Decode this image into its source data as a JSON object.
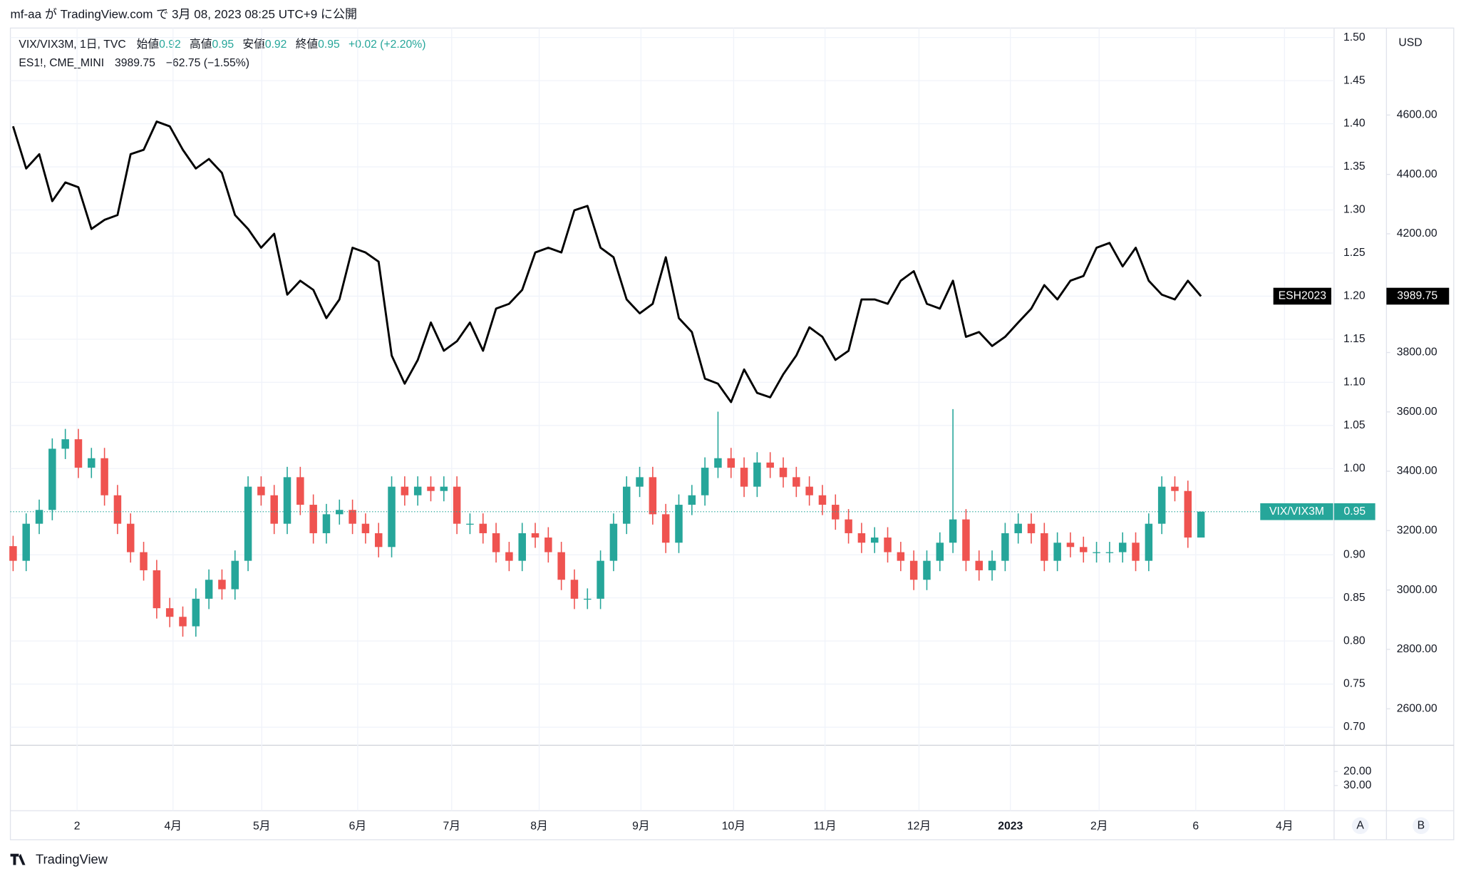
{
  "header": "mf-aa が TradingView.com で 3月 08, 2023 08:25 UTC+9 に公開",
  "footer": "TradingView",
  "buttons": [
    "A",
    "B"
  ],
  "chart_data": {
    "type": "candlestick",
    "legend": {
      "title": "VIX/VIX3M, 1日, TVC",
      "open_label": "始値",
      "high_label": "高値",
      "low_label": "安値",
      "close_label": "終値",
      "change": "+0.02 (+2.20%)",
      "title2": "ES1!, CME_MINI",
      "change2": "−62.75 (−1.55%)"
    },
    "currency": "USD",
    "grid": true,
    "xlim": [
      -0.21,
      101.2
    ],
    "xticks": [
      {
        "value": 4.9,
        "label": "2"
      },
      {
        "value": 12.25,
        "label": "4月"
      },
      {
        "value": 19.05,
        "label": "5月"
      },
      {
        "value": 26.4,
        "label": "6月"
      },
      {
        "value": 33.6,
        "label": "7月"
      },
      {
        "value": 40.3,
        "label": "8月"
      },
      {
        "value": 48.1,
        "label": "9月"
      },
      {
        "value": 55.2,
        "label": "10月"
      },
      {
        "value": 62.2,
        "label": "11月"
      },
      {
        "value": 69.4,
        "label": "12月"
      },
      {
        "value": 76.4,
        "label": "2023"
      },
      {
        "value": 83.2,
        "label": "2月"
      },
      {
        "value": 90.6,
        "label": "6"
      },
      {
        "value": 97.4,
        "label": "4月"
      }
    ],
    "ylim": [
      0.679,
      1.511
    ],
    "yticks": [
      {
        "value": 1.5,
        "label": "1.50"
      },
      {
        "value": 1.45,
        "label": "1.45"
      },
      {
        "value": 1.4,
        "label": "1.40"
      },
      {
        "value": 1.35,
        "label": "1.35"
      },
      {
        "value": 1.3,
        "label": "1.30"
      },
      {
        "value": 1.25,
        "label": "1.25"
      },
      {
        "value": 1.2,
        "label": "1.20"
      },
      {
        "value": 1.15,
        "label": "1.15"
      },
      {
        "value": 1.1,
        "label": "1.10"
      },
      {
        "value": 1.05,
        "label": "1.05"
      },
      {
        "value": 1,
        "label": "1.00"
      },
      {
        "value": 0.9,
        "label": "0.90"
      },
      {
        "value": 0.85,
        "label": "0.85"
      },
      {
        "value": 0.8,
        "label": "0.80"
      },
      {
        "value": 0.75,
        "label": "0.75"
      },
      {
        "value": 0.7,
        "label": "0.70"
      }
    ],
    "y2lim": [
      2477,
      4893
    ],
    "y2ticks": [
      {
        "value": 4600,
        "label": "4600.00"
      },
      {
        "value": 4400,
        "label": "4400.00"
      },
      {
        "value": 4200,
        "label": "4200.00"
      },
      {
        "value": 3800,
        "label": "3800.00"
      },
      {
        "value": 3600,
        "label": "3600.00"
      },
      {
        "value": 3400,
        "label": "3400.00"
      },
      {
        "value": 3200,
        "label": "3200.00"
      },
      {
        "value": 3000,
        "label": "3000.00"
      },
      {
        "value": 2800,
        "label": "2800.00"
      },
      {
        "value": 2600,
        "label": "2600.00"
      }
    ],
    "series": [
      {
        "name": "VIX/VIX3M",
        "type": "candlestick",
        "up_color": "#26a69a",
        "down_color": "#ef5350",
        "open": [
          0.91,
          0.893,
          0.936,
          0.952,
          1.023,
          1.034,
          1.001,
          1.012,
          0.969,
          0.936,
          0.903,
          0.882,
          0.838,
          0.828,
          0.817,
          0.849,
          0.871,
          0.86,
          0.893,
          0.979,
          0.969,
          0.936,
          0.99,
          0.958,
          0.925,
          0.947,
          0.952,
          0.936,
          0.925,
          0.909,
          0.979,
          0.969,
          0.979,
          0.974,
          0.979,
          0.936,
          0.936,
          0.925,
          0.903,
          0.893,
          0.925,
          0.92,
          0.903,
          0.871,
          0.849,
          0.849,
          0.893,
          0.936,
          0.979,
          0.99,
          0.947,
          0.914,
          0.958,
          0.969,
          1.001,
          1.012,
          1.001,
          0.979,
          1.007,
          1.001,
          0.99,
          0.979,
          0.969,
          0.958,
          0.941,
          0.925,
          0.914,
          0.92,
          0.903,
          0.893,
          0.871,
          0.893,
          0.914,
          0.941,
          0.893,
          0.882,
          0.893,
          0.925,
          0.936,
          0.925,
          0.893,
          0.914,
          0.909,
          0.903,
          0.903,
          0.903,
          0.914,
          0.893,
          0.936,
          0.979,
          0.974,
          0.92
        ],
        "high": [
          0.922,
          0.948,
          0.964,
          1.035,
          1.046,
          1.046,
          1.024,
          1.024,
          0.981,
          0.948,
          0.915,
          0.894,
          0.85,
          0.84,
          0.861,
          0.883,
          0.883,
          0.905,
          0.991,
          0.991,
          0.981,
          1.002,
          1.002,
          0.97,
          0.959,
          0.964,
          0.964,
          0.948,
          0.937,
          0.991,
          0.991,
          0.991,
          0.991,
          0.991,
          0.991,
          0.948,
          0.948,
          0.937,
          0.915,
          0.937,
          0.937,
          0.932,
          0.915,
          0.883,
          0.861,
          0.905,
          0.948,
          0.991,
          1.002,
          1.002,
          0.959,
          0.97,
          0.981,
          1.013,
          1.066,
          1.024,
          1.013,
          1.019,
          1.019,
          1.013,
          1.002,
          0.991,
          0.981,
          0.97,
          0.953,
          0.937,
          0.932,
          0.932,
          0.915,
          0.905,
          0.905,
          0.926,
          1.069,
          0.953,
          0.905,
          0.905,
          0.937,
          0.948,
          0.948,
          0.937,
          0.926,
          0.926,
          0.921,
          0.915,
          0.915,
          0.926,
          0.926,
          0.948,
          0.991,
          0.991,
          0.986,
          0.95
        ],
        "low": [
          0.881,
          0.881,
          0.924,
          0.94,
          1.011,
          0.989,
          0.989,
          0.957,
          0.924,
          0.891,
          0.87,
          0.826,
          0.816,
          0.805,
          0.805,
          0.837,
          0.848,
          0.848,
          0.881,
          0.957,
          0.924,
          0.924,
          0.946,
          0.913,
          0.913,
          0.935,
          0.924,
          0.913,
          0.897,
          0.897,
          0.957,
          0.957,
          0.962,
          0.962,
          0.924,
          0.924,
          0.913,
          0.891,
          0.881,
          0.881,
          0.908,
          0.891,
          0.859,
          0.837,
          0.837,
          0.837,
          0.881,
          0.924,
          0.967,
          0.935,
          0.902,
          0.902,
          0.946,
          0.957,
          0.989,
          0.989,
          0.967,
          0.967,
          0.989,
          0.978,
          0.967,
          0.957,
          0.946,
          0.929,
          0.913,
          0.902,
          0.902,
          0.891,
          0.881,
          0.859,
          0.859,
          0.881,
          0.902,
          0.881,
          0.87,
          0.87,
          0.881,
          0.913,
          0.913,
          0.881,
          0.881,
          0.897,
          0.891,
          0.891,
          0.891,
          0.891,
          0.881,
          0.881,
          0.924,
          0.962,
          0.908,
          0.92
        ],
        "close": [
          0.893,
          0.936,
          0.952,
          1.023,
          1.034,
          1.001,
          1.012,
          0.969,
          0.936,
          0.903,
          0.882,
          0.838,
          0.828,
          0.817,
          0.849,
          0.871,
          0.86,
          0.893,
          0.979,
          0.969,
          0.936,
          0.99,
          0.958,
          0.925,
          0.947,
          0.952,
          0.936,
          0.925,
          0.909,
          0.979,
          0.969,
          0.979,
          0.974,
          0.979,
          0.936,
          0.936,
          0.925,
          0.903,
          0.893,
          0.925,
          0.92,
          0.903,
          0.871,
          0.849,
          0.849,
          0.893,
          0.936,
          0.979,
          0.99,
          0.947,
          0.914,
          0.958,
          0.969,
          1.001,
          1.012,
          1.001,
          0.979,
          1.007,
          1.001,
          0.99,
          0.979,
          0.969,
          0.958,
          0.941,
          0.925,
          0.914,
          0.92,
          0.903,
          0.893,
          0.871,
          0.893,
          0.914,
          0.941,
          0.893,
          0.882,
          0.893,
          0.925,
          0.936,
          0.925,
          0.893,
          0.914,
          0.909,
          0.903,
          0.903,
          0.903,
          0.914,
          0.893,
          0.936,
          0.979,
          0.974,
          0.92,
          0.95
        ]
      },
      {
        "name": "ESH2023",
        "type": "line",
        "axis": "y2",
        "color": "#000000",
        "values": [
          4562,
          4420,
          4468,
          4310,
          4373,
          4357,
          4216,
          4247,
          4263,
          4468,
          4483,
          4578,
          4562,
          4483,
          4420,
          4452,
          4405,
          4263,
          4216,
          4153,
          4200,
          3995,
          4042,
          4011,
          3916,
          3979,
          4153,
          4137,
          4106,
          3790,
          3695,
          3775,
          3901,
          3806,
          3838,
          3901,
          3806,
          3948,
          3964,
          4011,
          4137,
          4153,
          4137,
          4279,
          4294,
          4153,
          4121,
          3979,
          3932,
          3964,
          4121,
          3916,
          3869,
          3712,
          3695,
          3633,
          3743,
          3664,
          3649,
          3727,
          3790,
          3885,
          3853,
          3775,
          3806,
          3979,
          3979,
          3964,
          4042,
          4074,
          3964,
          3948,
          4042,
          3853,
          3869,
          3822,
          3853,
          3901,
          3948,
          4027,
          3979,
          4042,
          4058,
          4153,
          4169,
          4090,
          4153,
          4042,
          3995,
          3979,
          4042,
          3989.75
        ]
      }
    ],
    "lower_pane": {
      "ylim": [
        1.33,
        48
      ],
      "yticks": [
        {
          "value": 20,
          "label": "20.00"
        },
        {
          "value": 30,
          "label": "30.00"
        }
      ]
    }
  }
}
